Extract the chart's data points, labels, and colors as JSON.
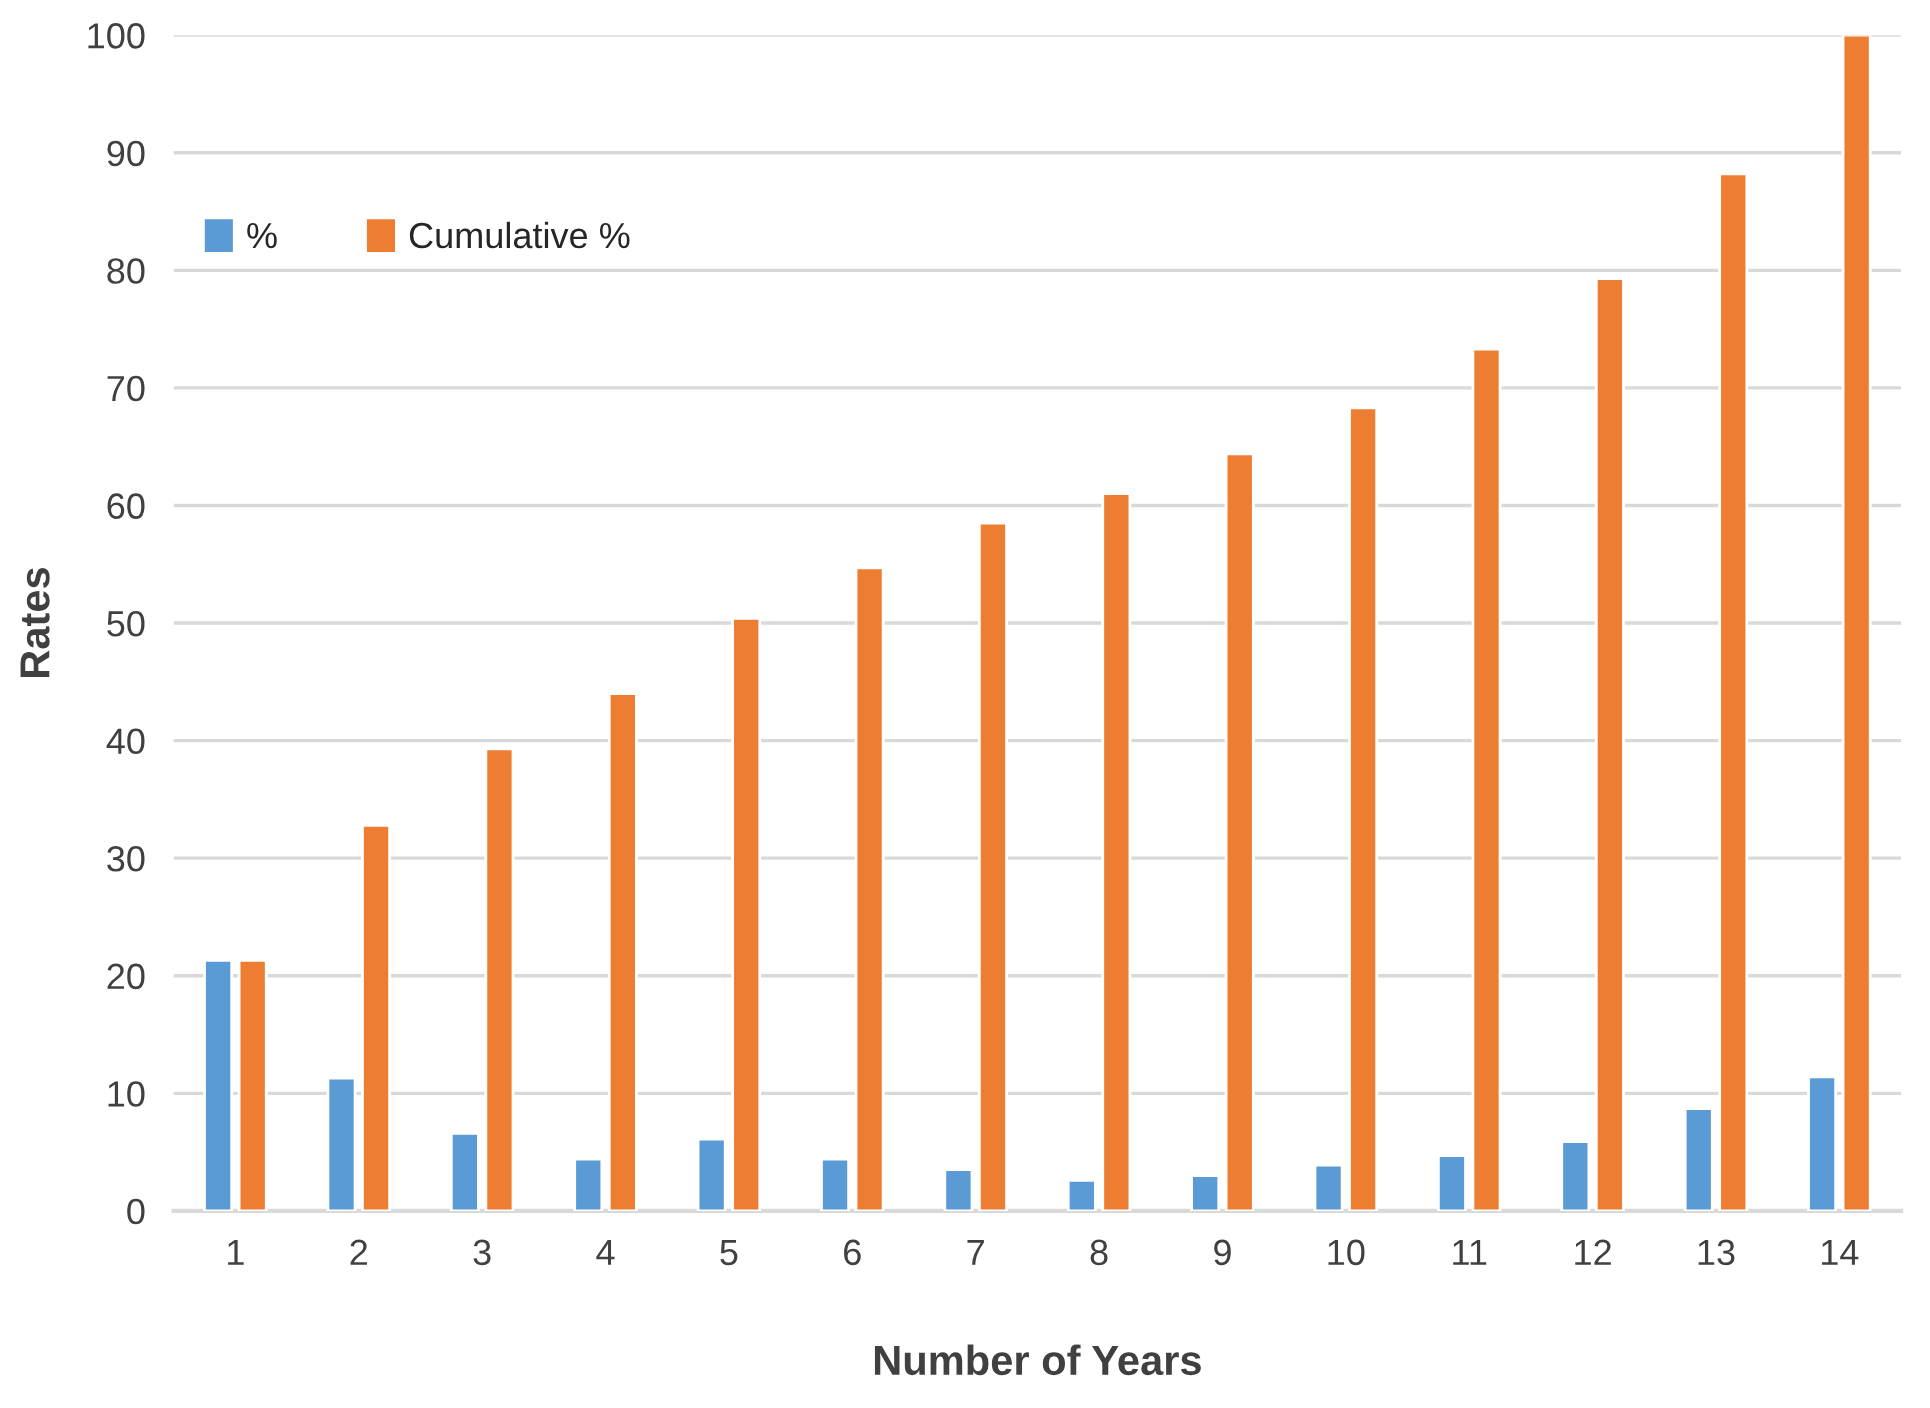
{
  "chart_data": {
    "type": "bar",
    "xlabel": "Number of Years",
    "ylabel": "Rates",
    "categories": [
      "1",
      "2",
      "3",
      "4",
      "5",
      "6",
      "7",
      "8",
      "9",
      "10",
      "11",
      "12",
      "13",
      "14"
    ],
    "series": [
      {
        "name": "%",
        "color": "#5b9bd5",
        "values": [
          21.3,
          11.3,
          6.6,
          4.4,
          6.1,
          4.4,
          3.5,
          2.6,
          3.0,
          3.9,
          4.7,
          5.9,
          8.7,
          11.4
        ]
      },
      {
        "name": "Cumulative %",
        "color": "#ed7d31",
        "values": [
          21.3,
          32.8,
          39.3,
          44.0,
          50.4,
          54.7,
          58.5,
          61.0,
          64.4,
          68.3,
          73.3,
          79.3,
          88.2,
          100
        ]
      }
    ],
    "ylim": [
      0,
      100
    ],
    "yticks": [
      0,
      10,
      20,
      30,
      40,
      50,
      60,
      70,
      80,
      90,
      100
    ],
    "grid": "y",
    "legend": "top left"
  }
}
